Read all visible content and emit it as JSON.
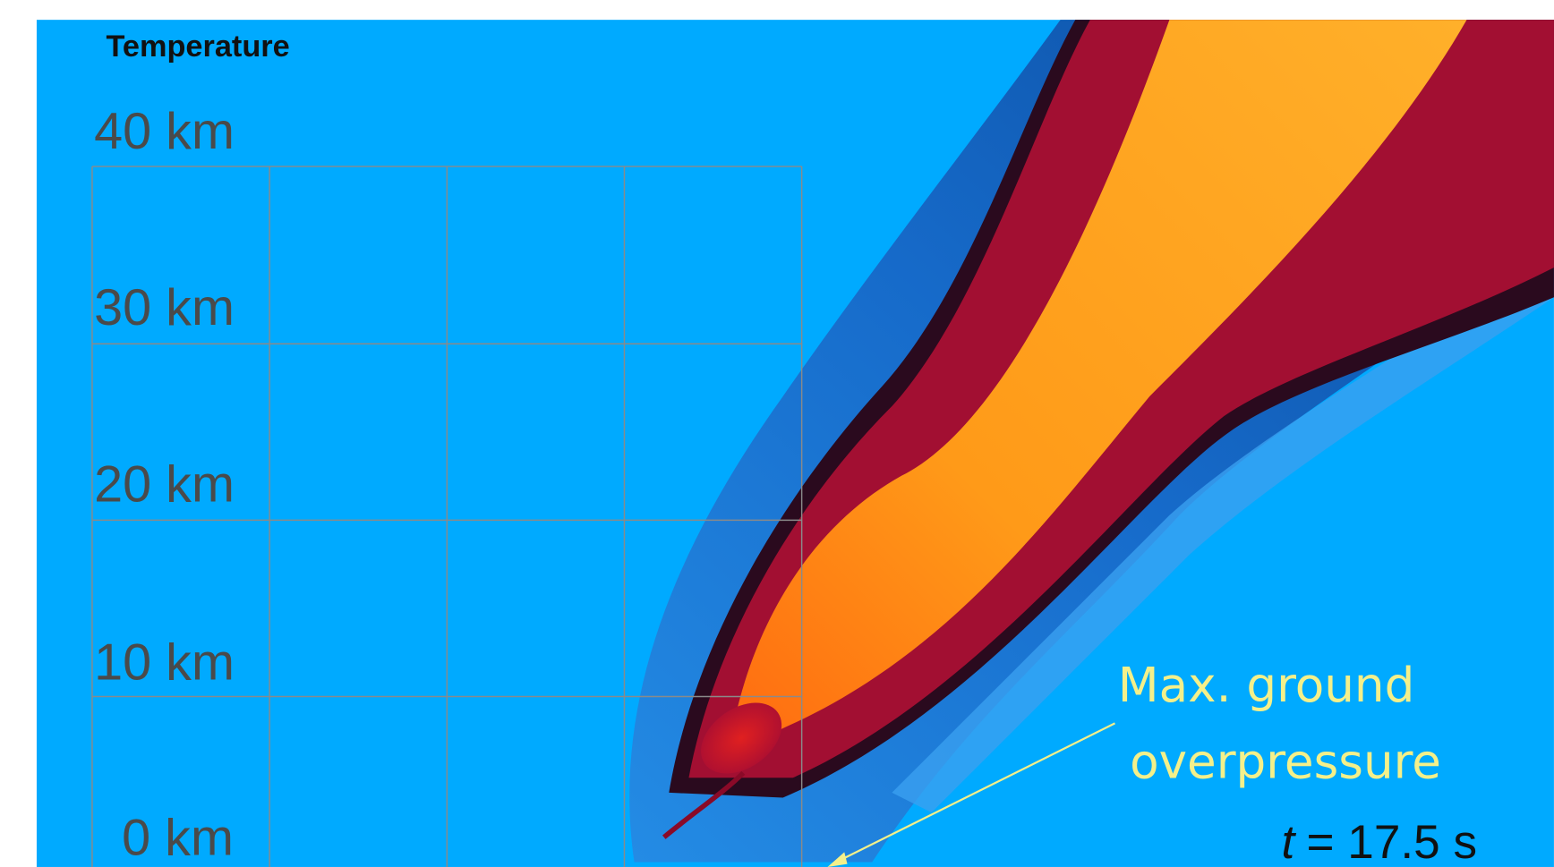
{
  "title": "Temperature",
  "altitude_labels": [
    "40 km",
    "30 km",
    "20 km",
    "10 km",
    "0 km"
  ],
  "annotation": {
    "lines": [
      "Max. ground",
      "overpressure"
    ]
  },
  "time": {
    "variable": "t",
    "text": "= 17.5 s"
  }
}
